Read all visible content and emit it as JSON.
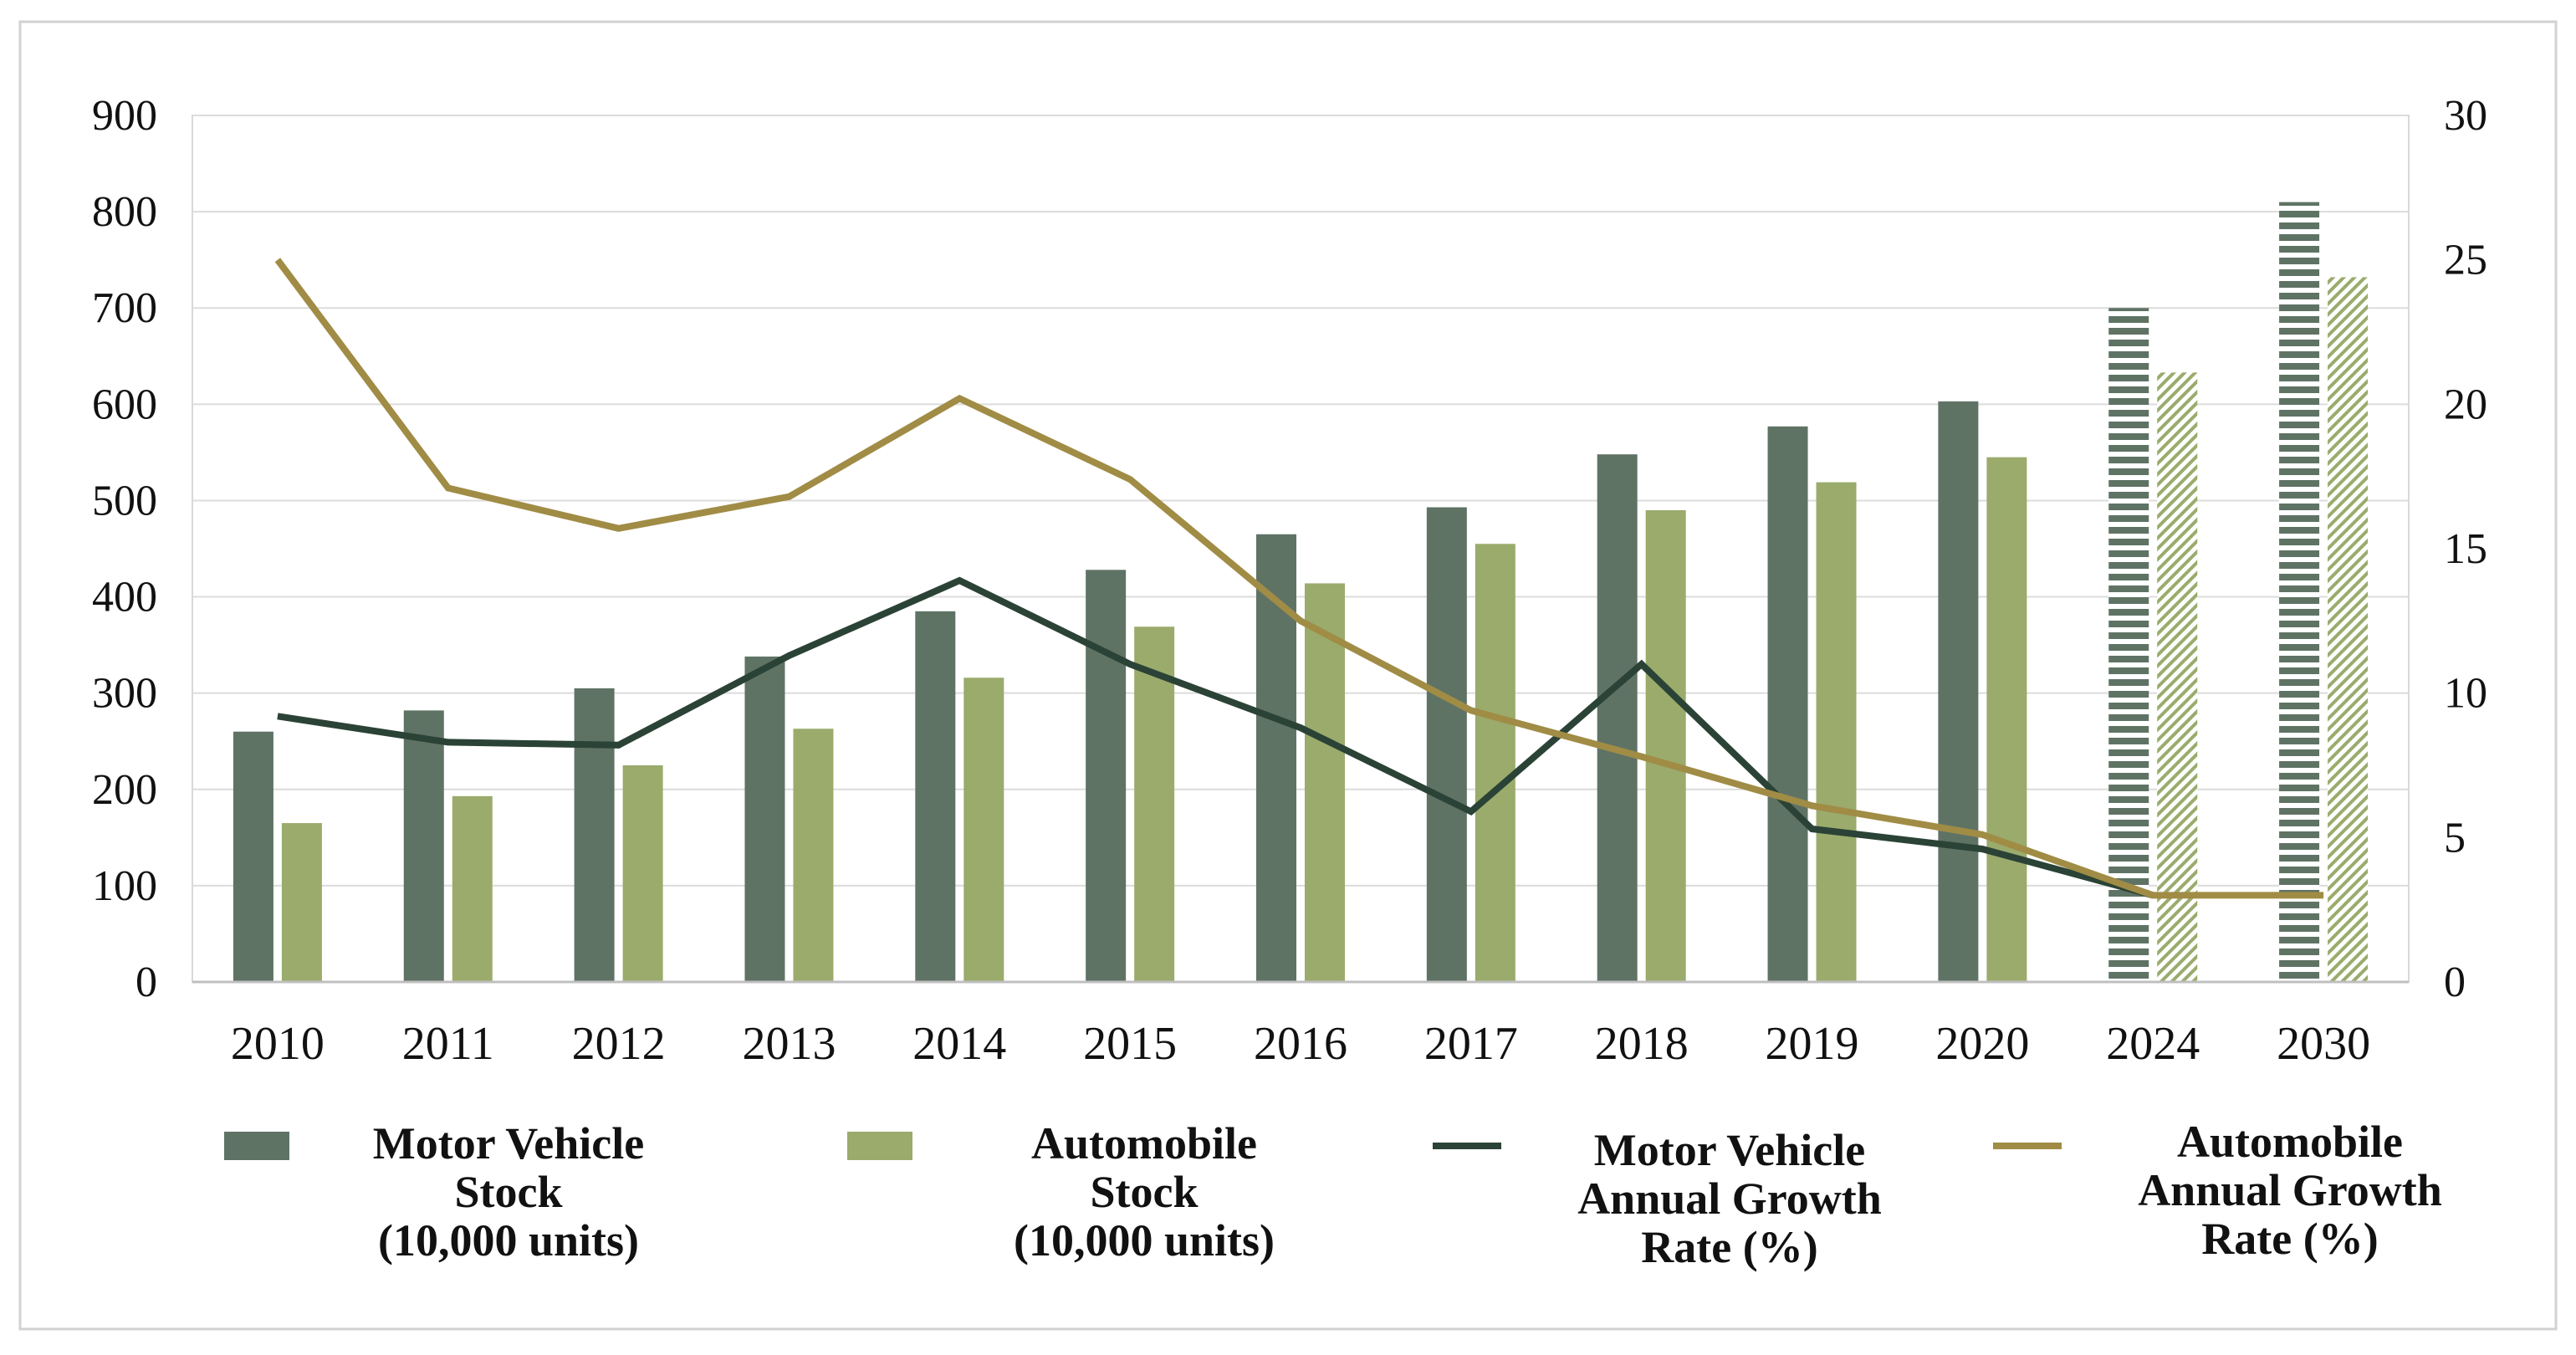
{
  "chart_data": {
    "type": "bar",
    "title": "",
    "xlabel": "",
    "ylabel": "",
    "y2label": "",
    "categories": [
      "2010",
      "2011",
      "2012",
      "2013",
      "2014",
      "2015",
      "2016",
      "2017",
      "2018",
      "2019",
      "2020",
      "2024",
      "2030"
    ],
    "projected_categories": [
      "2024",
      "2030"
    ],
    "ylim": [
      0,
      900
    ],
    "yticks": [
      0,
      100,
      200,
      300,
      400,
      500,
      600,
      700,
      800,
      900
    ],
    "y2lim": [
      0,
      30
    ],
    "y2ticks": [
      0,
      5,
      10,
      15,
      20,
      25,
      30
    ],
    "grid": true,
    "legend_position": "bottom",
    "series": [
      {
        "name": "Motor Vehicle Stock (10,000 units)",
        "legend_lines": [
          "Motor Vehicle",
          "Stock",
          "(10,000 units)"
        ],
        "type": "bar",
        "axis": "left",
        "color": "#5f7365",
        "values": [
          260,
          282,
          305,
          338,
          385,
          428,
          465,
          493,
          548,
          577,
          603,
          700,
          810
        ]
      },
      {
        "name": "Automobile Stock (10,000 units)",
        "legend_lines": [
          "Automobile",
          "Stock",
          "(10,000 units)"
        ],
        "type": "bar",
        "axis": "left",
        "color": "#9aab6c",
        "values": [
          165,
          193,
          225,
          263,
          316,
          369,
          414,
          455,
          490,
          519,
          545,
          633,
          732
        ]
      },
      {
        "name": "Motor Vehicle Annual Growth Rate (%)",
        "legend_lines": [
          "Motor Vehicle",
          "Annual Growth",
          "Rate (%)"
        ],
        "type": "line",
        "axis": "right",
        "color": "#2b4336",
        "values": [
          9.2,
          8.3,
          8.2,
          11.3,
          13.9,
          11.0,
          8.8,
          5.9,
          11.0,
          5.3,
          4.6,
          3.0,
          null
        ]
      },
      {
        "name": "Automobile Annual Growth Rate (%)",
        "legend_lines": [
          "Automobile",
          "Annual Growth",
          "Rate (%)"
        ],
        "type": "line",
        "axis": "right",
        "color": "#a08c45",
        "values": [
          25.0,
          17.1,
          15.7,
          16.8,
          20.2,
          17.4,
          12.5,
          9.4,
          7.8,
          6.1,
          5.1,
          3.0,
          3.0
        ]
      }
    ]
  }
}
